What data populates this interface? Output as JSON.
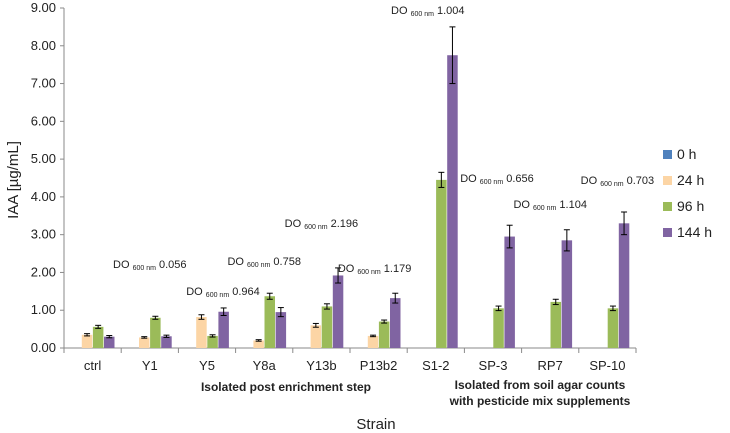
{
  "chart_data": {
    "type": "bar",
    "ylabel": "IAA [µg/mL]",
    "xlabel": "Strain",
    "ylim": [
      0,
      9
    ],
    "yticks": [
      "0.00",
      "1.00",
      "2.00",
      "3.00",
      "4.00",
      "5.00",
      "6.00",
      "7.00",
      "8.00",
      "9.00"
    ],
    "categories": [
      "ctrl",
      "Y1",
      "Y5",
      "Y8a",
      "Y13b",
      "P13b2",
      "S1-2",
      "SP-3",
      "RP7",
      "SP-10"
    ],
    "series": [
      {
        "name": "0 h",
        "color": "#4f81bd",
        "values": [
          0,
          0,
          0,
          0,
          0,
          0,
          0,
          0,
          0,
          0
        ],
        "errors": [
          0,
          0,
          0,
          0,
          0,
          0,
          0,
          0,
          0,
          0
        ]
      },
      {
        "name": "24 h",
        "color": "#fcd5a5",
        "values": [
          0.35,
          0.28,
          0.82,
          0.2,
          0.6,
          0.32,
          0,
          0,
          0,
          0
        ],
        "errors": [
          0.03,
          0.02,
          0.06,
          0.02,
          0.05,
          0.02,
          0,
          0,
          0,
          0
        ]
      },
      {
        "name": "96 h",
        "color": "#9bbb59",
        "values": [
          0.56,
          0.8,
          0.32,
          1.37,
          1.1,
          0.7,
          4.45,
          1.05,
          1.22,
          1.05
        ],
        "errors": [
          0.04,
          0.04,
          0.03,
          0.08,
          0.07,
          0.04,
          0.2,
          0.06,
          0.07,
          0.06
        ]
      },
      {
        "name": "144 h",
        "color": "#8064a2",
        "values": [
          0.3,
          0.31,
          0.96,
          0.95,
          1.92,
          1.32,
          7.75,
          2.95,
          2.85,
          3.3
        ],
        "errors": [
          0.03,
          0.03,
          0.1,
          0.12,
          0.2,
          0.13,
          0.75,
          0.3,
          0.28,
          0.3
        ]
      }
    ],
    "annotations": [
      {
        "category": "Y1",
        "prefix": "DO",
        "sub": "600 nm",
        "value": "0.056"
      },
      {
        "category": "Y5",
        "prefix": "DO",
        "sub": "600 nm",
        "value": "0.964"
      },
      {
        "category": "Y8a",
        "prefix": "DO",
        "sub": "600 nm",
        "value": "0.758"
      },
      {
        "category": "Y13b",
        "prefix": "DO",
        "sub": "600 nm",
        "value": "2.196"
      },
      {
        "category": "P13b2",
        "prefix": "DO",
        "sub": "600 nm",
        "value": "1.179"
      },
      {
        "category": "S1-2",
        "prefix": "DO",
        "sub": "600 nm",
        "value": "1.004"
      },
      {
        "category": "SP-3",
        "prefix": "DO",
        "sub": "600 nm",
        "value": "0.656"
      },
      {
        "category": "RP7",
        "prefix": "DO",
        "sub": "600 nm",
        "value": "1.104"
      },
      {
        "category": "SP-10",
        "prefix": "DO",
        "sub": "600 nm",
        "value": "0.703"
      }
    ],
    "group_labels": [
      {
        "lines": [
          "Isolated post enrichment step"
        ]
      },
      {
        "lines": [
          "Isolated from soil agar counts",
          "with pesticide mix supplements"
        ]
      }
    ],
    "legend_position": "right",
    "grid": false
  }
}
